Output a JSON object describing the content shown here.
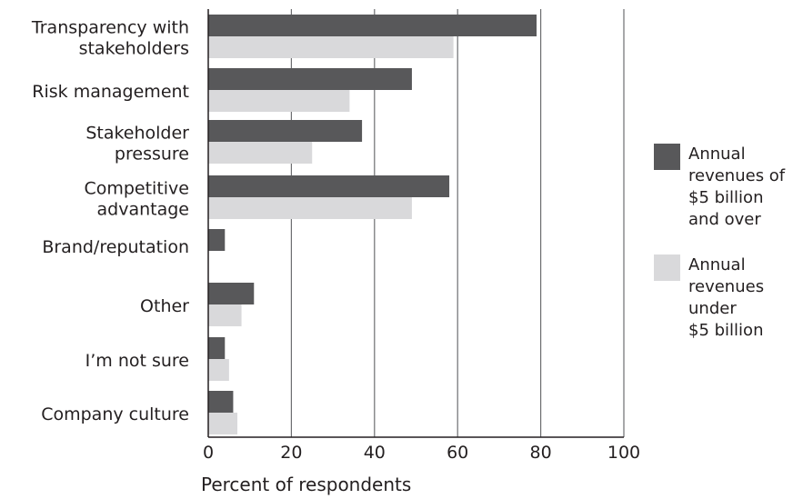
{
  "chart_data": {
    "type": "bar",
    "orientation": "horizontal",
    "title": "",
    "xlabel": "Percent of respondents",
    "ylabel": "",
    "xlim": [
      0,
      100
    ],
    "xticks": [
      0,
      20,
      40,
      60,
      80,
      100
    ],
    "grid": "vertical",
    "legend_position": "right",
    "categories": [
      [
        "Transparency with",
        "stakeholders"
      ],
      [
        "Risk management"
      ],
      [
        "Stakeholder",
        "pressure"
      ],
      [
        "Competitive",
        "advantage"
      ],
      [
        "Brand/reputation"
      ],
      [
        "Other"
      ],
      [
        "I’m not sure"
      ],
      [
        "Company culture"
      ]
    ],
    "series": [
      {
        "name": "Annual revenues of $5 billion and over",
        "legend_lines": [
          "Annual",
          "revenues of",
          "$5 billion",
          "and over"
        ],
        "color": "#58585a",
        "values": [
          79,
          49,
          37,
          58,
          4,
          11,
          4,
          6
        ]
      },
      {
        "name": "Annual revenues under $5 billion",
        "legend_lines": [
          "Annual",
          "revenues",
          "under",
          "$5 billion"
        ],
        "color": "#d9d9db",
        "values": [
          59,
          34,
          25,
          49,
          null,
          8,
          5,
          7
        ]
      }
    ]
  }
}
